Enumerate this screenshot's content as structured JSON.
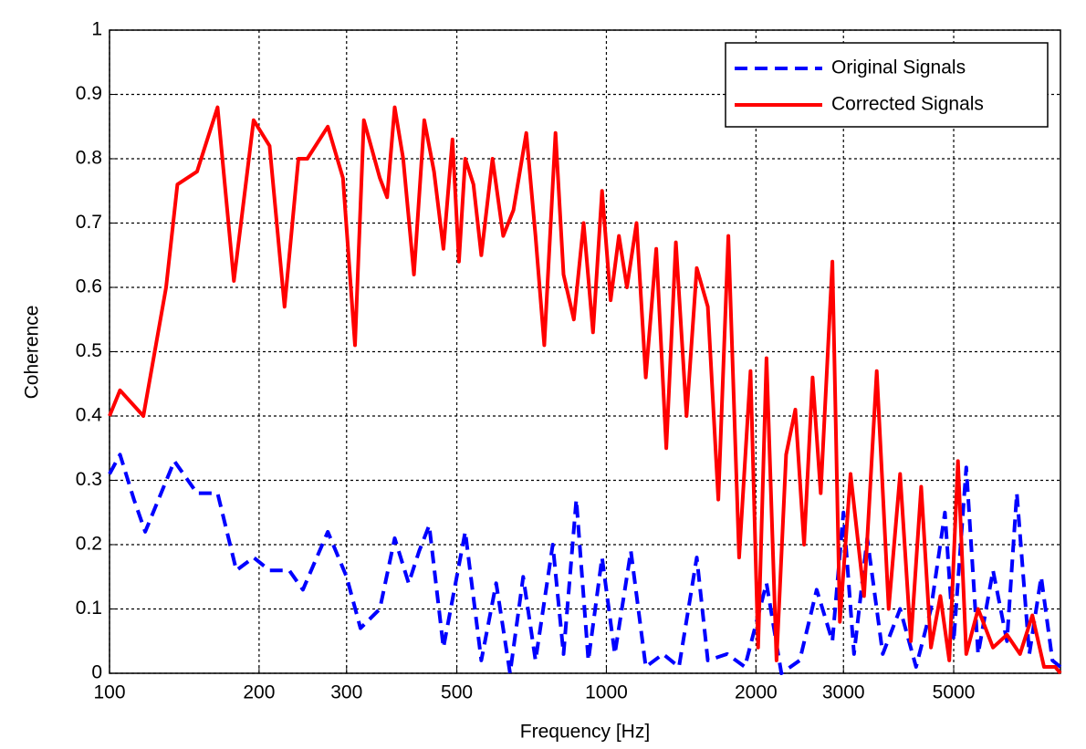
{
  "chart_data": {
    "type": "line",
    "x_label": "Frequency [Hz]",
    "y_label": "Coherence",
    "xscale": "log",
    "xlim": [
      100,
      8200
    ],
    "xticks": [
      100,
      200,
      300,
      500,
      1000,
      2000,
      3000,
      5000
    ],
    "ylim": [
      0,
      1
    ],
    "yticks": [
      0,
      0.1,
      0.2,
      0.3,
      0.4,
      0.5,
      0.6,
      0.7,
      0.8,
      0.9,
      1
    ],
    "grid": true,
    "legend": "upper right",
    "series": [
      {
        "name": "Original Signals",
        "color": "#0000ff",
        "dash": true,
        "x": [
          100,
          105,
          112,
          118,
          135,
          150,
          165,
          180,
          195,
          210,
          230,
          245,
          275,
          300,
          320,
          350,
          375,
          400,
          420,
          440,
          470,
          520,
          560,
          600,
          640,
          680,
          720,
          780,
          820,
          870,
          920,
          980,
          1040,
          1120,
          1200,
          1300,
          1400,
          1520,
          1600,
          1750,
          1900,
          2100,
          2250,
          2450,
          2650,
          2850,
          3000,
          3150,
          3350,
          3600,
          3900,
          4200,
          4500,
          4800,
          5000,
          5300,
          5600,
          6000,
          6400,
          6700,
          7100,
          7500,
          7900,
          8200
        ],
        "values": [
          0.31,
          0.34,
          0.27,
          0.22,
          0.33,
          0.28,
          0.28,
          0.16,
          0.18,
          0.16,
          0.16,
          0.13,
          0.22,
          0.15,
          0.07,
          0.1,
          0.21,
          0.14,
          0.19,
          0.23,
          0.04,
          0.22,
          0.02,
          0.14,
          0,
          0.15,
          0.02,
          0.2,
          0.03,
          0.27,
          0.02,
          0.18,
          0.03,
          0.19,
          0.01,
          0.03,
          0.01,
          0.18,
          0.02,
          0.03,
          0.01,
          0.14,
          0,
          0.02,
          0.13,
          0.05,
          0.25,
          0.03,
          0.21,
          0.03,
          0.1,
          0.01,
          0.1,
          0.25,
          0.05,
          0.32,
          0.03,
          0.16,
          0.05,
          0.28,
          0.03,
          0.15,
          0.02,
          0.01
        ]
      },
      {
        "name": "Corrected Signals",
        "color": "#ff0000",
        "dash": false,
        "x": [
          100,
          105,
          117,
          130,
          137,
          150,
          165,
          178,
          195,
          210,
          225,
          240,
          250,
          275,
          295,
          312,
          325,
          350,
          362,
          375,
          390,
          410,
          430,
          450,
          470,
          490,
          505,
          520,
          540,
          560,
          590,
          620,
          650,
          690,
          720,
          750,
          790,
          820,
          860,
          900,
          940,
          980,
          1020,
          1060,
          1100,
          1150,
          1200,
          1260,
          1320,
          1380,
          1450,
          1520,
          1600,
          1680,
          1760,
          1850,
          1950,
          2020,
          2100,
          2200,
          2300,
          2400,
          2500,
          2600,
          2700,
          2850,
          2950,
          3100,
          3300,
          3500,
          3700,
          3900,
          4100,
          4300,
          4500,
          4700,
          4900,
          5100,
          5300,
          5600,
          6000,
          6400,
          6800,
          7200,
          7600,
          8000,
          8200
        ],
        "values": [
          0.4,
          0.44,
          0.4,
          0.6,
          0.76,
          0.78,
          0.88,
          0.61,
          0.86,
          0.82,
          0.57,
          0.8,
          0.8,
          0.85,
          0.77,
          0.51,
          0.86,
          0.77,
          0.74,
          0.88,
          0.8,
          0.62,
          0.86,
          0.78,
          0.66,
          0.83,
          0.64,
          0.8,
          0.76,
          0.65,
          0.8,
          0.68,
          0.72,
          0.84,
          0.68,
          0.51,
          0.84,
          0.62,
          0.55,
          0.7,
          0.53,
          0.75,
          0.58,
          0.68,
          0.6,
          0.7,
          0.46,
          0.66,
          0.35,
          0.67,
          0.4,
          0.63,
          0.57,
          0.27,
          0.68,
          0.18,
          0.47,
          0.04,
          0.49,
          0.02,
          0.34,
          0.41,
          0.2,
          0.46,
          0.28,
          0.64,
          0.08,
          0.31,
          0.12,
          0.47,
          0.1,
          0.31,
          0.05,
          0.29,
          0.04,
          0.12,
          0.02,
          0.33,
          0.03,
          0.1,
          0.04,
          0.06,
          0.03,
          0.09,
          0.01,
          0.01,
          0
        ]
      }
    ]
  }
}
